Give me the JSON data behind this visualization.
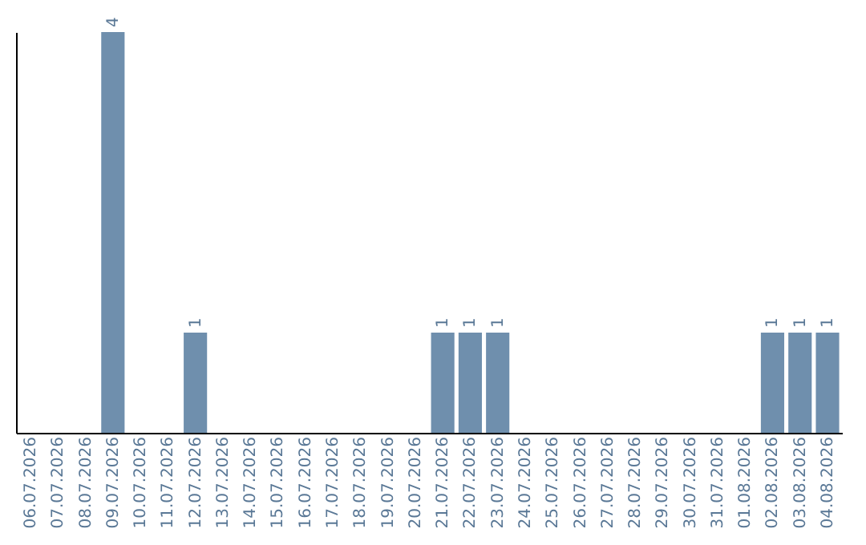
{
  "chart_data": {
    "type": "bar",
    "categories": [
      "06.07.2026",
      "07.07.2026",
      "08.07.2026",
      "09.07.2026",
      "10.07.2026",
      "11.07.2026",
      "12.07.2026",
      "13.07.2026",
      "14.07.2026",
      "15.07.2026",
      "16.07.2026",
      "17.07.2026",
      "18.07.2026",
      "19.07.2026",
      "20.07.2026",
      "21.07.2026",
      "22.07.2026",
      "23.07.2026",
      "24.07.2026",
      "25.07.2026",
      "26.07.2026",
      "27.07.2026",
      "28.07.2026",
      "29.07.2026",
      "30.07.2026",
      "31.07.2026",
      "01.08.2026",
      "02.08.2026",
      "03.08.2026",
      "04.08.2026"
    ],
    "values": [
      0,
      0,
      0,
      4,
      0,
      0,
      1,
      0,
      0,
      0,
      0,
      0,
      0,
      0,
      0,
      1,
      1,
      1,
      0,
      0,
      0,
      0,
      0,
      0,
      0,
      0,
      0,
      1,
      1,
      1
    ],
    "value_labels": [
      null,
      null,
      null,
      "4",
      null,
      null,
      "1",
      null,
      null,
      null,
      null,
      null,
      null,
      null,
      null,
      "1",
      "1",
      "1",
      null,
      null,
      null,
      null,
      null,
      null,
      null,
      null,
      null,
      "1",
      "1",
      "1"
    ],
    "color": "#6f8fad",
    "ylim": [
      0,
      4
    ],
    "tick_labels": "x",
    "grid": false
  }
}
